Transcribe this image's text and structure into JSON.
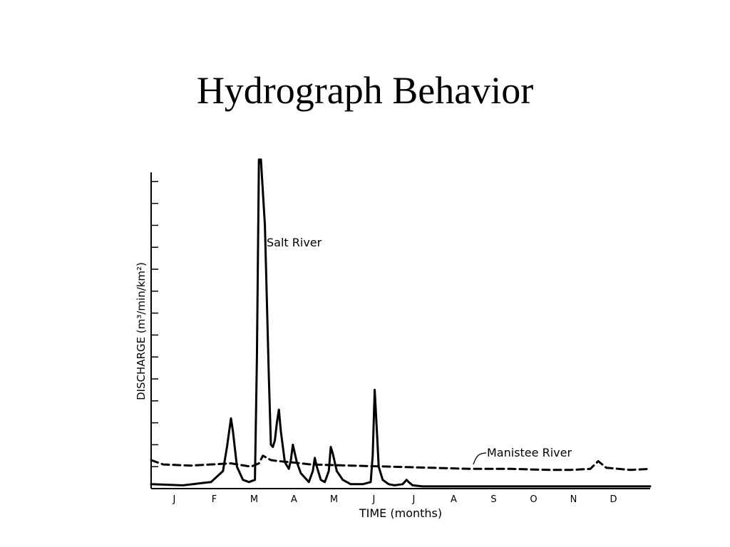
{
  "slide": {
    "title": "Hydrograph Behavior"
  },
  "chart_data": {
    "type": "line",
    "xlabel": "TIME (months)",
    "ylabel": "DISCHARGE (m³/min/km²)",
    "xlim": [
      0,
      12.5
    ],
    "ylim": [
      0,
      15
    ],
    "categories": [
      "J",
      "F",
      "M",
      "A",
      "M",
      "J",
      "J",
      "A",
      "S",
      "O",
      "N",
      "D"
    ],
    "category_positions": [
      0.58,
      1.58,
      2.58,
      3.58,
      4.58,
      5.58,
      6.58,
      7.58,
      8.58,
      9.58,
      10.58,
      11.58
    ],
    "yticks": [
      0,
      1,
      2,
      3,
      4,
      5,
      6,
      7,
      8,
      9,
      10,
      11,
      12,
      13,
      14,
      15
    ],
    "series": [
      {
        "name": "Salt River",
        "style": "solid",
        "color": "#000000",
        "x": [
          0.0,
          0.8,
          1.5,
          1.8,
          1.9,
          2.0,
          2.05,
          2.15,
          2.3,
          2.45,
          2.6,
          2.65,
          2.7,
          2.75,
          2.85,
          2.95,
          3.0,
          3.05,
          3.1,
          3.15,
          3.2,
          3.25,
          3.35,
          3.45,
          3.5,
          3.55,
          3.65,
          3.75,
          3.95,
          4.05,
          4.1,
          4.15,
          4.25,
          4.35,
          4.45,
          4.5,
          4.55,
          4.65,
          4.8,
          5.0,
          5.3,
          5.5,
          5.55,
          5.6,
          5.65,
          5.7,
          5.8,
          5.95,
          6.1,
          6.3,
          6.4,
          6.45,
          6.55,
          6.8,
          7.2,
          8.0,
          9.0,
          10.0,
          10.8,
          11.5,
          12.0,
          12.5
        ],
        "y": [
          0.2,
          0.15,
          0.3,
          0.8,
          1.9,
          3.2,
          2.6,
          1.0,
          0.4,
          0.3,
          0.4,
          6.0,
          15.5,
          15.5,
          12.0,
          5.0,
          2.0,
          1.9,
          2.2,
          3.0,
          3.6,
          2.6,
          1.2,
          0.9,
          1.3,
          2.0,
          1.2,
          0.7,
          0.3,
          0.8,
          1.4,
          1.0,
          0.4,
          0.3,
          0.8,
          1.9,
          1.6,
          0.8,
          0.4,
          0.2,
          0.2,
          0.3,
          1.5,
          4.5,
          2.8,
          1.0,
          0.4,
          0.2,
          0.15,
          0.2,
          0.4,
          0.3,
          0.15,
          0.1,
          0.1,
          0.1,
          0.1,
          0.1,
          0.1,
          0.1,
          0.1,
          0.1
        ]
      },
      {
        "name": "Manistee River",
        "style": "dashed",
        "color": "#000000",
        "x": [
          0.0,
          0.3,
          1.0,
          1.5,
          2.0,
          2.5,
          2.7,
          2.8,
          2.9,
          3.0,
          3.2,
          3.5,
          4.0,
          5.0,
          6.0,
          7.0,
          8.0,
          9.0,
          10.0,
          10.5,
          11.0,
          11.2,
          11.4,
          12.0,
          12.5
        ],
        "y": [
          1.3,
          1.1,
          1.05,
          1.1,
          1.15,
          1.0,
          1.15,
          1.5,
          1.4,
          1.3,
          1.25,
          1.2,
          1.1,
          1.05,
          1.0,
          0.95,
          0.9,
          0.9,
          0.85,
          0.85,
          0.9,
          1.25,
          0.95,
          0.85,
          0.9
        ]
      }
    ],
    "annotations": [
      {
        "text": "Salt River",
        "series": "Salt River"
      },
      {
        "text": "Manistee River",
        "series": "Manistee River"
      }
    ],
    "grid": false,
    "legend": "none"
  }
}
